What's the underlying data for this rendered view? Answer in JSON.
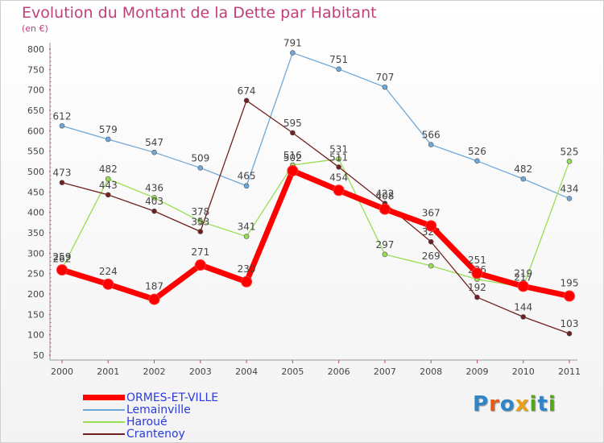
{
  "title": "Evolution du Montant de la Dette par Habitant",
  "subtitle": "(en €)",
  "logo": {
    "text": "Proxiti",
    "letters": [
      "P",
      "r",
      "o",
      "x",
      "i",
      "t",
      "i"
    ],
    "colors": [
      "#2e86c8",
      "#e85a14",
      "#2e86c8",
      "#e8a014",
      "#54a818",
      "#2e86c8",
      "#54a818"
    ]
  },
  "chart_data": {
    "type": "line",
    "title": "Evolution du Montant de la Dette par Habitant",
    "unit": "(en €)",
    "x": [
      "2000",
      "2001",
      "2002",
      "2003",
      "2004",
      "2005",
      "2006",
      "2007",
      "2008",
      "2009",
      "2010",
      "2011"
    ],
    "ylim": [
      50,
      800
    ],
    "yticks": [
      50,
      100,
      150,
      200,
      250,
      300,
      350,
      400,
      450,
      500,
      550,
      600,
      650,
      700,
      750,
      800
    ],
    "grid": false,
    "legend_position": "bottom-left",
    "series": [
      {
        "name": "Lemainville",
        "color": "#6fa8d8",
        "values": [
          612,
          579,
          547,
          509,
          465,
          791,
          751,
          707,
          566,
          526,
          482,
          434
        ],
        "labels": [
          "612",
          "579",
          "547",
          "509",
          "465",
          "791",
          "751",
          "707",
          "566",
          "526",
          "482",
          "434"
        ]
      },
      {
        "name": "Haroué",
        "color": "#99dd55",
        "values": [
          262,
          482,
          436,
          378,
          341,
          516,
          531,
          297,
          269,
          236,
          217,
          525
        ],
        "labels": [
          "262",
          "482",
          "436",
          "378",
          "341",
          "516",
          "531",
          "297",
          "269",
          "236",
          "217",
          "525"
        ]
      },
      {
        "name": "Crantenoy",
        "color": "#702020",
        "values": [
          473,
          443,
          403,
          353,
          674,
          595,
          511,
          422,
          328,
          192,
          144,
          103
        ],
        "labels": [
          "473",
          "443",
          "403",
          "353",
          "674",
          "595",
          "511",
          "422",
          "328",
          "192",
          "144",
          "103"
        ]
      },
      {
        "name": "ORMES-ET-VILLE",
        "color": "#ff0000",
        "values": [
          259,
          224,
          187,
          271,
          230,
          502,
          454,
          408,
          367,
          251,
          219,
          195
        ],
        "labels": [
          "259",
          "224",
          "187",
          "271",
          "230",
          "502",
          "454",
          "408",
          "367",
          "251",
          "219",
          "195"
        ]
      }
    ]
  }
}
